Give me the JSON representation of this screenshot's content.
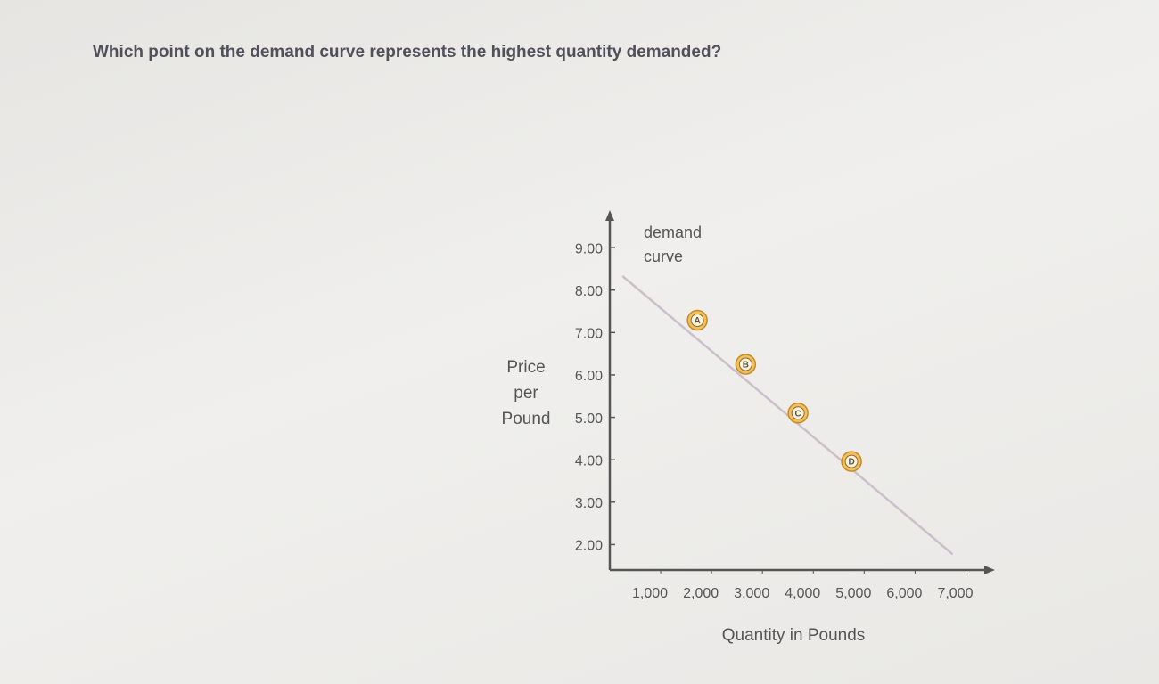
{
  "question": "Which point on the demand curve represents the highest quantity demanded?",
  "chart_data": {
    "type": "line",
    "x": [
      250,
      6740
    ],
    "series": [
      {
        "name": "demand curve",
        "color": "#cbbfca",
        "values": [
          8.33,
          1.77
        ]
      }
    ],
    "points": {
      "labels": [
        "A",
        "B",
        "C",
        "D"
      ],
      "x": [
        1720,
        2670,
        3700,
        4750
      ],
      "y": [
        7.29,
        6.25,
        5.1,
        3.96
      ],
      "color": "#f0c062"
    },
    "xlabel": "Quantity in Pounds",
    "ylabel": "Price per Pound",
    "xlim": [
      0,
      7500
    ],
    "ylim": [
      1.4,
      9.8
    ],
    "xticks": [
      {
        "value": 1000,
        "label": "1,000"
      },
      {
        "value": 2000,
        "label": "2,000"
      },
      {
        "value": 3000,
        "label": "3,000"
      },
      {
        "value": 4000,
        "label": "4,000"
      },
      {
        "value": 5000,
        "label": "5,000"
      },
      {
        "value": 6000,
        "label": "6,000"
      },
      {
        "value": 7000,
        "label": "7,000"
      }
    ],
    "yticks": [
      {
        "value": 2,
        "label": "2.00"
      },
      {
        "value": 3,
        "label": "3.00"
      },
      {
        "value": 4,
        "label": "4.00"
      },
      {
        "value": 5,
        "label": "5.00"
      },
      {
        "value": 6,
        "label": "6.00"
      },
      {
        "value": 7,
        "label": "7.00"
      },
      {
        "value": 8,
        "label": "8.00"
      },
      {
        "value": 9,
        "label": "9.00"
      }
    ],
    "grid": false
  }
}
